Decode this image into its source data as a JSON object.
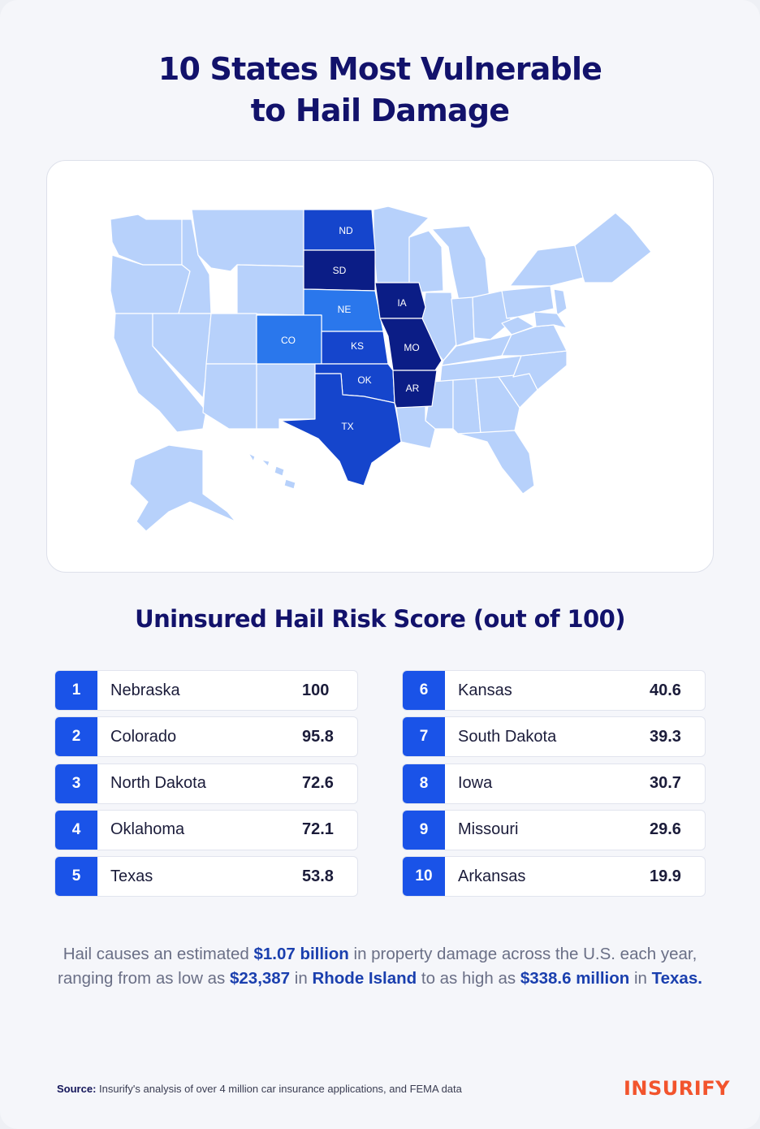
{
  "title_line1": "10 States Most Vulnerable",
  "title_line2": "to Hail Damage",
  "map": {
    "colors": {
      "base": "#b7d1fb",
      "tier1": "#2a77ec",
      "tier2": "#1545cc",
      "tier3": "#0b1d86",
      "border": "#ffffff"
    },
    "labels": {
      "ND": "ND",
      "SD": "SD",
      "NE": "NE",
      "IA": "IA",
      "CO": "CO",
      "KS": "KS",
      "MO": "MO",
      "OK": "OK",
      "AR": "AR",
      "TX": "TX"
    }
  },
  "subtitle": "Uninsured Hail Risk Score (out of 100)",
  "rankings": [
    {
      "rank": "1",
      "state": "Nebraska",
      "score": "100"
    },
    {
      "rank": "2",
      "state": "Colorado",
      "score": "95.8"
    },
    {
      "rank": "3",
      "state": "North Dakota",
      "score": "72.6"
    },
    {
      "rank": "4",
      "state": "Oklahoma",
      "score": "72.1"
    },
    {
      "rank": "5",
      "state": "Texas",
      "score": "53.8"
    },
    {
      "rank": "6",
      "state": "Kansas",
      "score": "40.6"
    },
    {
      "rank": "7",
      "state": "South Dakota",
      "score": "39.3"
    },
    {
      "rank": "8",
      "state": "Iowa",
      "score": "30.7"
    },
    {
      "rank": "9",
      "state": "Missouri",
      "score": "29.6"
    },
    {
      "rank": "10",
      "state": "Arkansas",
      "score": "19.9"
    }
  ],
  "summary": {
    "p1": "Hail causes an estimated ",
    "b1": "$1.07 billion",
    "p2": " in property damage across the U.S. each year, ranging from as low as ",
    "b2": "$23,387",
    "p3": " in ",
    "b3": "Rhode Island",
    "p4": " to as high as ",
    "b4": "$338.6 million",
    "p5": " in ",
    "b5": "Texas."
  },
  "source": {
    "label": "Source:",
    "text": " Insurify's analysis of over 4 million car insurance applications, and FEMA data"
  },
  "logo": "INSURIFY"
}
